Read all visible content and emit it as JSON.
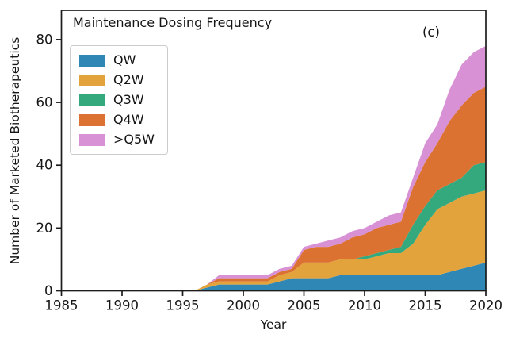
{
  "figure": {
    "title": "Maintenance Dosing Frequency",
    "panel_label": "(c)",
    "x_axis_label": "Year",
    "y_axis_label": "Number of Marketed Biotherapeutics"
  },
  "chart_data": {
    "type": "area",
    "stacked": true,
    "title": "Maintenance Dosing Frequency",
    "xlabel": "Year",
    "ylabel": "Number of Marketed Biotherapeutics",
    "xlim": [
      1985,
      2020
    ],
    "ylim": [
      0,
      80
    ],
    "x_ticks": [
      1985,
      1990,
      1995,
      2000,
      2005,
      2010,
      2015,
      2020
    ],
    "y_ticks": [
      0,
      20,
      40,
      60,
      80
    ],
    "grid": false,
    "legend_position": "upper-left",
    "x": [
      1985,
      1986,
      1987,
      1988,
      1989,
      1990,
      1991,
      1992,
      1993,
      1994,
      1995,
      1996,
      1997,
      1998,
      1999,
      2000,
      2001,
      2002,
      2003,
      2004,
      2005,
      2006,
      2007,
      2008,
      2009,
      2010,
      2011,
      2012,
      2013,
      2014,
      2015,
      2016,
      2017,
      2018,
      2019,
      2020
    ],
    "series": [
      {
        "name": "QW",
        "color": "#2f87b5",
        "values": [
          0,
          0,
          0,
          0,
          0,
          0,
          0,
          0,
          0,
          0,
          0,
          0,
          1,
          2,
          2,
          2,
          2,
          2,
          3,
          4,
          4,
          4,
          4,
          5,
          5,
          5,
          5,
          5,
          5,
          5,
          5,
          5,
          6,
          7,
          8,
          9
        ]
      },
      {
        "name": "Q2W",
        "color": "#e2a33c",
        "values": [
          0,
          0,
          0,
          0,
          0,
          0,
          0,
          0,
          0,
          0,
          0,
          0,
          1,
          1,
          1,
          1,
          1,
          1,
          2,
          2,
          5,
          5,
          5,
          5,
          5,
          5,
          6,
          7,
          7,
          10,
          16,
          21,
          22,
          23,
          23,
          23
        ]
      },
      {
        "name": "Q3W",
        "color": "#34a97e",
        "values": [
          0,
          0,
          0,
          0,
          0,
          0,
          0,
          0,
          0,
          0,
          0,
          0,
          0,
          0,
          0,
          0,
          0,
          0,
          0,
          0,
          0,
          0,
          0,
          0,
          0,
          1,
          1,
          1,
          2,
          6,
          6,
          6,
          6,
          6,
          9,
          9
        ]
      },
      {
        "name": "Q4W",
        "color": "#dc7232",
        "values": [
          0,
          0,
          0,
          0,
          0,
          0,
          0,
          0,
          0,
          0,
          0,
          0,
          0,
          1,
          1,
          1,
          1,
          1,
          1,
          1,
          4,
          5,
          5,
          5,
          7,
          7,
          8,
          8,
          8,
          12,
          14,
          15,
          20,
          23,
          23,
          24
        ]
      },
      {
        "name": ">Q5W",
        "color": "#d791d4",
        "values": [
          0,
          0,
          0,
          0,
          0,
          0,
          0,
          0,
          0,
          0,
          0,
          0,
          0,
          1,
          1,
          1,
          1,
          1,
          1,
          1,
          1,
          1,
          2,
          2,
          2,
          2,
          2,
          3,
          3,
          3,
          6,
          6,
          10,
          13,
          13,
          13
        ]
      }
    ],
    "axis_color": "#1c1c1c",
    "tick_label_color": "#151515"
  }
}
